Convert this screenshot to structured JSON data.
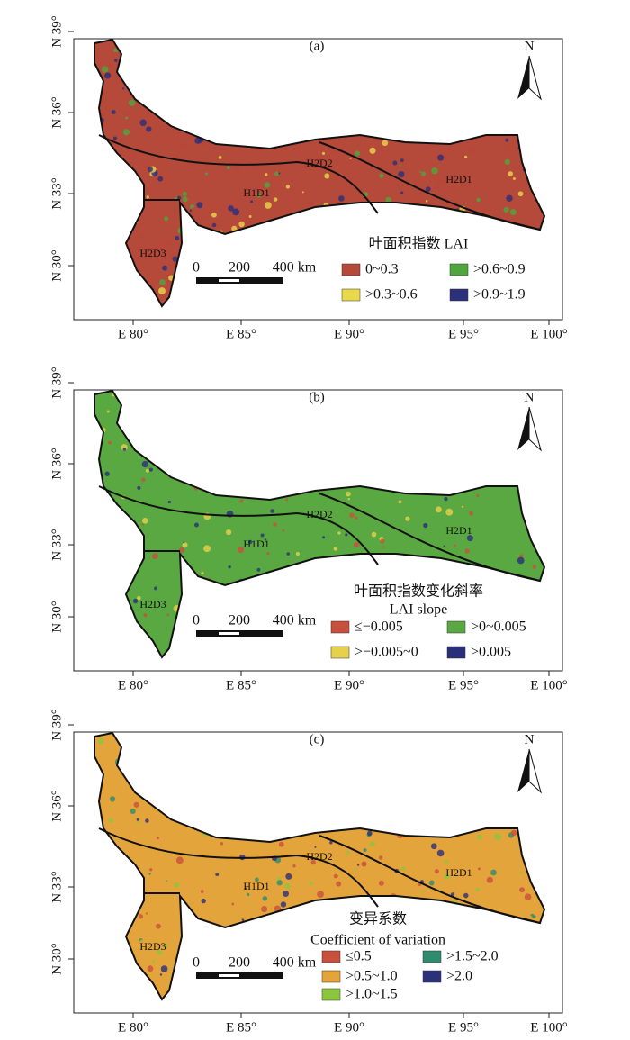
{
  "axes": {
    "latitude": [
      "N 39°",
      "N 36°",
      "N 33°",
      "N 30°"
    ],
    "longitude": [
      "E 80°",
      "E 85°",
      "E 90°",
      "E 95°",
      "E 100°"
    ]
  },
  "north": "N",
  "scale_bar": [
    "0",
    "200",
    "400 km"
  ],
  "regions": [
    "H1D1",
    "H2D2",
    "H2D1",
    "H2D3"
  ],
  "panels": [
    {
      "label": "(a)",
      "legend": {
        "title": "叶面积指数 LAI",
        "items": [
          {
            "label": "0~0.3",
            "color": "#b5493a"
          },
          {
            "label": ">0.6~0.9",
            "color": "#4fa63c"
          },
          {
            "label": ">0.3~0.6",
            "color": "#e8d84a"
          },
          {
            "label": ">0.9~1.9",
            "color": "#2c2f7a"
          }
        ]
      }
    },
    {
      "label": "(b)",
      "legend": {
        "title": "叶面积指数变化斜率",
        "subtitle": "LAI slope",
        "items": [
          {
            "label": "≤−0.005",
            "color": "#c8503c"
          },
          {
            "label": ">0~0.005",
            "color": "#5aa842"
          },
          {
            "label": ">−0.005~0",
            "color": "#e6d24a"
          },
          {
            "label": ">0.005",
            "color": "#2b2e78"
          }
        ]
      }
    },
    {
      "label": "(c)",
      "legend": {
        "title": "变异系数",
        "subtitle": "Coefficient of variation",
        "items": [
          {
            "label": "≤0.5",
            "color": "#c8503c"
          },
          {
            "label": ">1.5~2.0",
            "color": "#2e8b6e"
          },
          {
            "label": ">0.5~1.0",
            "color": "#e4a43c"
          },
          {
            "label": ">2.0",
            "color": "#2c2f7a"
          },
          {
            "label": ">1.0~1.5",
            "color": "#8cc63f"
          }
        ]
      }
    }
  ]
}
